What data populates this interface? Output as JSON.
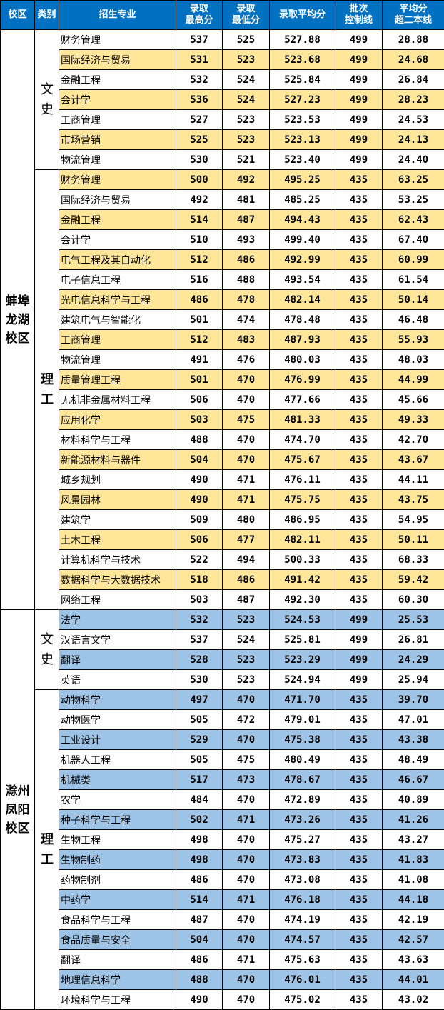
{
  "colors": {
    "header": "#0070c0",
    "campus1_highlight": "#ffe699",
    "campus2_highlight": "#9dc3e6"
  },
  "headers": [
    "校区",
    "类别",
    "招生专业",
    "录取最高分",
    "录取最低分",
    "录取平均分",
    "批次控制线",
    "平均分超二本线"
  ],
  "header_lines": [
    [
      "校区"
    ],
    [
      "类别"
    ],
    [
      "招生专业"
    ],
    [
      "录取",
      "最高分"
    ],
    [
      "录取",
      "最低分"
    ],
    [
      "录取平均分"
    ],
    [
      "批次",
      "控制线"
    ],
    [
      "平均分",
      "超二本线"
    ]
  ],
  "campuses": [
    {
      "name": "蚌埠龙湖校区",
      "groups": [
        {
          "category": "文史",
          "rows": [
            [
              "财务管理",
              "537",
              "525",
              "527.88",
              "499",
              "28.88"
            ],
            [
              "国际经济与贸易",
              "531",
              "523",
              "523.68",
              "499",
              "24.68"
            ],
            [
              "金融工程",
              "532",
              "524",
              "525.84",
              "499",
              "26.84"
            ],
            [
              "会计学",
              "536",
              "524",
              "527.23",
              "499",
              "28.23"
            ],
            [
              "工商管理",
              "527",
              "523",
              "523.53",
              "499",
              "24.53"
            ],
            [
              "市场营销",
              "525",
              "523",
              "523.13",
              "499",
              "24.13"
            ],
            [
              "物流管理",
              "530",
              "521",
              "523.40",
              "499",
              "24.40"
            ]
          ]
        },
        {
          "category": "理工",
          "rows": [
            [
              "财务管理",
              "500",
              "492",
              "495.25",
              "435",
              "63.25"
            ],
            [
              "国际经济与贸易",
              "492",
              "481",
              "485.25",
              "435",
              "53.25"
            ],
            [
              "金融工程",
              "514",
              "487",
              "494.43",
              "435",
              "62.43"
            ],
            [
              "会计学",
              "510",
              "493",
              "499.40",
              "435",
              "67.40"
            ],
            [
              "电气工程及其自动化",
              "512",
              "486",
              "492.99",
              "435",
              "60.99"
            ],
            [
              "电子信息工程",
              "516",
              "488",
              "493.54",
              "435",
              "61.54"
            ],
            [
              "光电信息科学与工程",
              "486",
              "478",
              "482.14",
              "435",
              "50.14"
            ],
            [
              "建筑电气与智能化",
              "501",
              "474",
              "478.48",
              "435",
              "46.48"
            ],
            [
              "工商管理",
              "512",
              "483",
              "487.93",
              "435",
              "55.93"
            ],
            [
              "物流管理",
              "491",
              "476",
              "480.03",
              "435",
              "48.03"
            ],
            [
              "质量管理工程",
              "501",
              "470",
              "476.99",
              "435",
              "44.99"
            ],
            [
              "无机非金属材料工程",
              "506",
              "470",
              "477.66",
              "435",
              "45.66"
            ],
            [
              "应用化学",
              "503",
              "475",
              "481.33",
              "435",
              "49.33"
            ],
            [
              "材料科学与工程",
              "488",
              "470",
              "474.70",
              "435",
              "42.70"
            ],
            [
              "新能源材料与器件",
              "504",
              "470",
              "475.67",
              "435",
              "43.67"
            ],
            [
              "城乡规划",
              "490",
              "471",
              "476.11",
              "435",
              "44.11"
            ],
            [
              "风景园林",
              "490",
              "471",
              "475.75",
              "435",
              "43.75"
            ],
            [
              "建筑学",
              "509",
              "480",
              "486.95",
              "435",
              "54.95"
            ],
            [
              "土木工程",
              "506",
              "477",
              "482.11",
              "435",
              "50.11"
            ],
            [
              "计算机科学与技术",
              "522",
              "494",
              "500.33",
              "435",
              "68.33"
            ],
            [
              "数据科学与大数据技术",
              "518",
              "486",
              "491.42",
              "435",
              "59.42"
            ],
            [
              "网络工程",
              "503",
              "487",
              "492.30",
              "435",
              "60.30"
            ]
          ]
        }
      ]
    },
    {
      "name": "滁州凤阳校区",
      "groups": [
        {
          "category": "文史",
          "rows": [
            [
              "法学",
              "532",
              "523",
              "524.53",
              "499",
              "25.53"
            ],
            [
              "汉语言文学",
              "537",
              "524",
              "525.81",
              "499",
              "26.81"
            ],
            [
              "翻译",
              "528",
              "523",
              "523.29",
              "499",
              "24.29"
            ],
            [
              "英语",
              "530",
              "523",
              "524.94",
              "499",
              "25.94"
            ]
          ]
        },
        {
          "category": "理工",
          "rows": [
            [
              "动物科学",
              "497",
              "470",
              "471.70",
              "435",
              "39.70"
            ],
            [
              "动物医学",
              "505",
              "472",
              "479.01",
              "435",
              "47.01"
            ],
            [
              "工业设计",
              "529",
              "470",
              "475.38",
              "435",
              "43.38"
            ],
            [
              "机器人工程",
              "505",
              "475",
              "480.49",
              "435",
              "48.49"
            ],
            [
              "机械类",
              "517",
              "473",
              "478.67",
              "435",
              "46.67"
            ],
            [
              "农学",
              "484",
              "470",
              "472.89",
              "435",
              "40.89"
            ],
            [
              "种子科学与工程",
              "502",
              "471",
              "473.26",
              "435",
              "41.26"
            ],
            [
              "生物工程",
              "498",
              "470",
              "475.27",
              "435",
              "43.27"
            ],
            [
              "生物制药",
              "498",
              "470",
              "473.83",
              "435",
              "41.83"
            ],
            [
              "药物制剂",
              "486",
              "470",
              "473.08",
              "435",
              "41.08"
            ],
            [
              "中药学",
              "514",
              "471",
              "476.18",
              "435",
              "44.18"
            ],
            [
              "食品科学与工程",
              "487",
              "470",
              "474.19",
              "435",
              "42.19"
            ],
            [
              "食品质量与安全",
              "504",
              "470",
              "474.57",
              "435",
              "42.57"
            ],
            [
              "翻译",
              "486",
              "471",
              "475.63",
              "435",
              "43.63"
            ],
            [
              "地理信息科学",
              "488",
              "470",
              "476.01",
              "435",
              "44.01"
            ],
            [
              "环境科学与工程",
              "490",
              "470",
              "475.02",
              "435",
              "43.02"
            ]
          ]
        }
      ]
    }
  ]
}
